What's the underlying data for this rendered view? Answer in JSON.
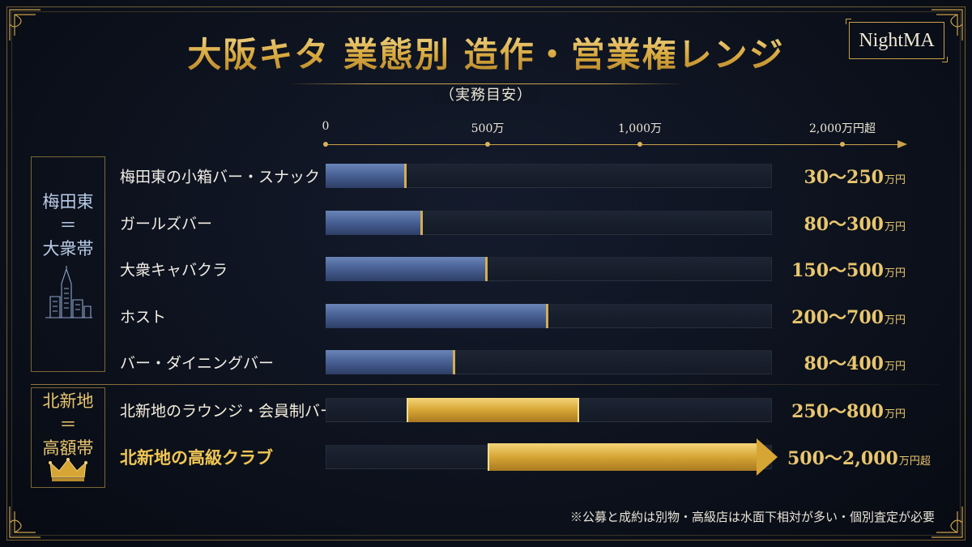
{
  "title": "大阪キタ 業態別 造作・営業権レンジ",
  "subtitle": "（実務目安）",
  "logo_text": "NightMA",
  "footnote": "※公募と成約は別物・高級店は水面下相対が多い・個別査定が必要",
  "chart_data": {
    "type": "bar",
    "orientation": "horizontal-range",
    "unit": "万円",
    "axis_ticks": [
      {
        "value": 0,
        "label": "0"
      },
      {
        "value": 500,
        "label": "500万"
      },
      {
        "value": 1000,
        "label": "1,000万"
      },
      {
        "value": 2000,
        "label": "2,000万円超"
      }
    ],
    "groups": [
      {
        "name_lines": [
          "梅田東",
          "＝",
          "大衆帯"
        ],
        "icon": "building-icon",
        "color": "#b9cce8"
      },
      {
        "name_lines": [
          "北新地",
          "＝",
          "高額帯"
        ],
        "icon": "crown-icon",
        "color": "#e9c66e"
      }
    ],
    "rows": [
      {
        "group": 0,
        "category": "梅田東の小箱バー・スナック",
        "low": 30,
        "high": 250,
        "value_text": "30〜250",
        "value_unit": "万円",
        "style": "blue"
      },
      {
        "group": 0,
        "category": "ガールズバー",
        "low": 80,
        "high": 300,
        "value_text": "80〜300",
        "value_unit": "万円",
        "style": "blue"
      },
      {
        "group": 0,
        "category": "大衆キャバクラ",
        "low": 150,
        "high": 500,
        "value_text": "150〜500",
        "value_unit": "万円",
        "style": "blue"
      },
      {
        "group": 0,
        "category": "ホスト",
        "low": 200,
        "high": 700,
        "value_text": "200〜700",
        "value_unit": "万円",
        "style": "blue"
      },
      {
        "group": 0,
        "category": "バー・ダイニングバー",
        "low": 80,
        "high": 400,
        "value_text": "80〜400",
        "value_unit": "万円",
        "style": "blue"
      },
      {
        "group": 1,
        "category": "北新地のラウンジ・会員制バー",
        "low": 250,
        "high": 800,
        "value_text": "250〜800",
        "value_unit": "万円",
        "style": "gold"
      },
      {
        "group": 1,
        "category": "北新地の高級クラブ",
        "low": 500,
        "high": 2000,
        "value_text": "500〜2,000",
        "value_unit": "万円超",
        "style": "gold-arrow"
      }
    ],
    "colors": {
      "blue_bar": "#4a6296",
      "gold_bar": "#d6a534",
      "accent": "#c9a24a"
    }
  }
}
